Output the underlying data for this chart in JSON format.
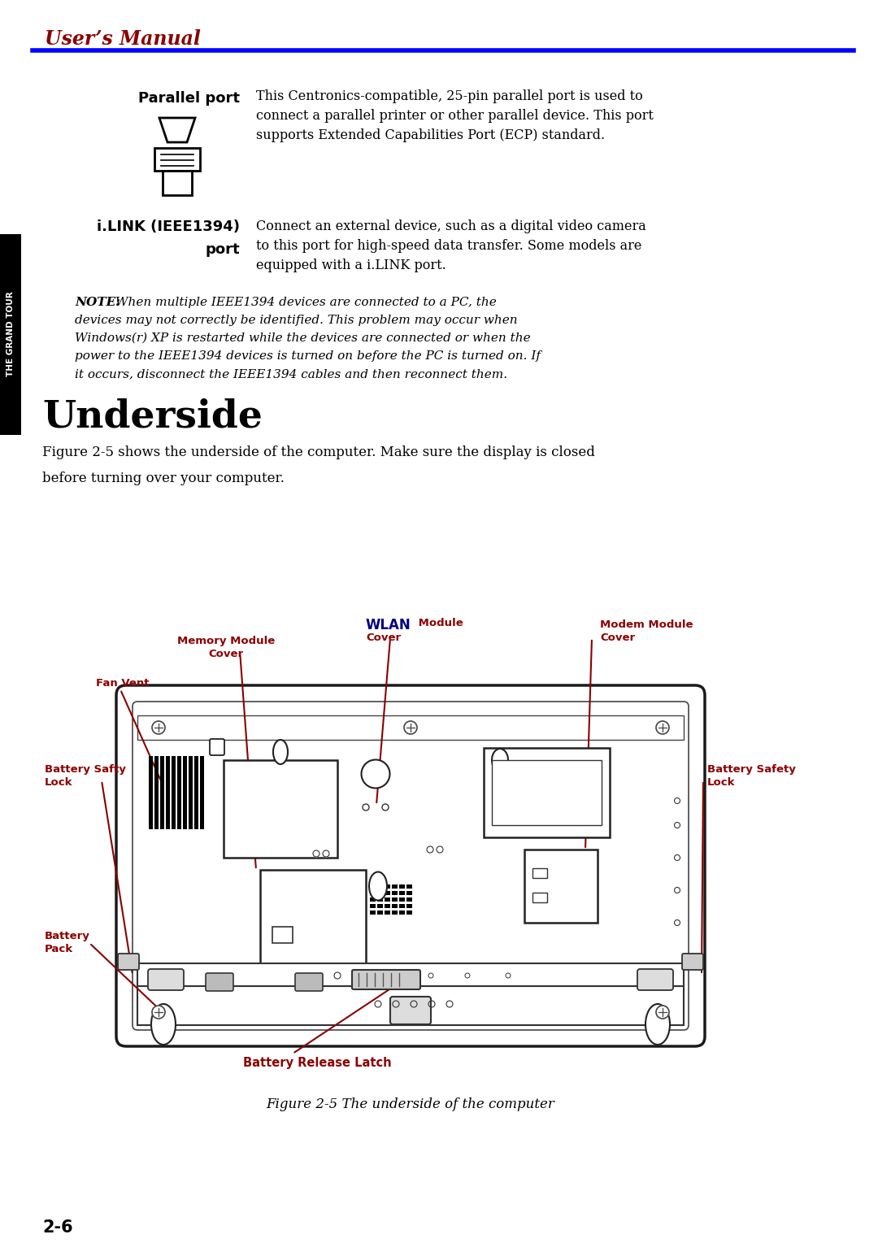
{
  "title_text": "User’s Manual",
  "title_color": "#8B0000",
  "title_underline_color": "#0000FF",
  "sidebar_text": "THE GRAND TOUR",
  "page_number": "2-6",
  "parallel_port_label": "Parallel port",
  "parallel_port_desc": "This Centronics-compatible, 25-pin parallel port is used to\nconnect a parallel printer or other parallel device. This port\nsupports Extended Capabilities Port (ECP) standard.",
  "ilink_line1": "i.LINK (IEEE1394)",
  "ilink_line2": "port",
  "ilink_desc": "Connect an external device, such as a digital video camera\nto this port for high-speed data transfer. Some models are\nequipped with a i.LINK port.",
  "note_bold": "NOTE:",
  "note_rest": " When multiple IEEE1394 devices are connected to a PC, the\ndevices may not correctly be identified. This problem may occur when\nWindows(r) XP is restarted while the devices are connected or when the\npower to the IEEE1394 devices is turned on before the PC is turned on. If\nit occurs, disconnect the IEEE1394 cables and then reconnect them.",
  "section_title": "Underside",
  "body_text1": "Figure 2-5 shows the underside of the computer. Make sure the display is closed",
  "body_text2": "before turning over your computer.",
  "fig_caption": "Figure 2-5 The underside of the computer",
  "label_memory1": "Memory Module",
  "label_memory2": "Cover",
  "label_wlan1": "WLAN",
  "label_wlan2": "Module",
  "label_wlan3": "Cover",
  "label_modem1": "Modem Module",
  "label_modem2": "Cover",
  "label_fanvent": "Fan Vent",
  "label_batsafty1": "Battery Safty",
  "label_batsafty2": "Lock",
  "label_batsafety1": "Battery Safety",
  "label_batsafety2": "Lock",
  "label_batpack1": "Battery",
  "label_batpack2": "Pack",
  "label_batlatch": "Battery Release Latch",
  "dark_red": "#8B0000",
  "navy": "#000080",
  "bg_color": "#FFFFFF",
  "line_color": "#111111",
  "diagram_fill": "#FFFFFF",
  "diagram_stroke": "#1a1a1a"
}
